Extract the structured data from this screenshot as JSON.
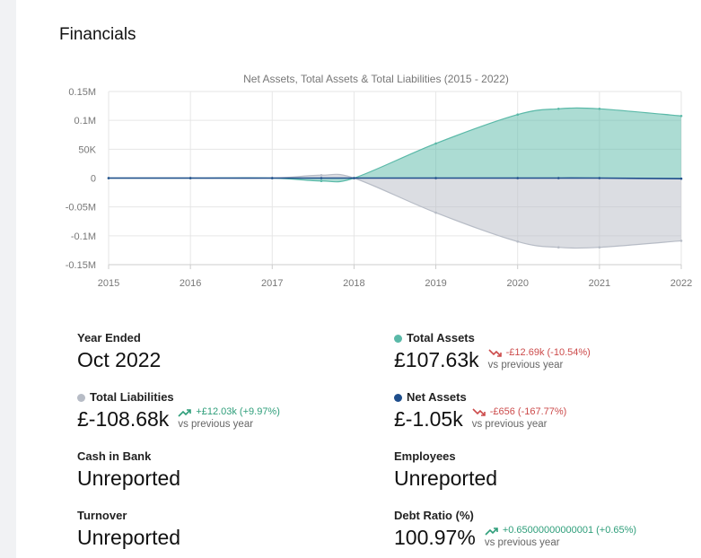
{
  "section": {
    "title": "Financials"
  },
  "colors": {
    "assets": "#5ab9a8",
    "liabilities": "#b7bcc6",
    "net": "#1f4e8c",
    "up": "#2e9e7a",
    "down": "#cc4b4b"
  },
  "chart_data": {
    "type": "area",
    "title": "Net Assets, Total Assets & Total Liabilities (2015 - 2022)",
    "x": [
      2015,
      2016,
      2017,
      2017.6,
      2018,
      2019,
      2020,
      2020.5,
      2021,
      2022
    ],
    "x_ticks": [
      "2015",
      "2016",
      "2017",
      "2018",
      "2019",
      "2020",
      "2021",
      "2022"
    ],
    "y_ticks": [
      "0.15M",
      "0.1M",
      "50K",
      "0",
      "-0.05M",
      "-0.1M",
      "-0.15M"
    ],
    "ylim": [
      -150000,
      150000
    ],
    "grid": true,
    "series": [
      {
        "name": "Total Assets",
        "color": "#5ab9a8",
        "values": [
          0,
          0,
          0,
          -5000,
          0,
          60000,
          110000,
          120000,
          120000,
          107630
        ]
      },
      {
        "name": "Total Liabilities",
        "color": "#b7bcc6",
        "values": [
          0,
          0,
          0,
          5000,
          0,
          -60000,
          -110000,
          -120000,
          -120000,
          -108680
        ]
      },
      {
        "name": "Net Assets",
        "color": "#1f4e8c",
        "values": [
          0,
          0,
          0,
          0,
          0,
          0,
          0,
          0,
          0,
          -1050
        ]
      }
    ]
  },
  "stats": {
    "year_ended": {
      "label": "Year Ended",
      "value": "Oct 2022"
    },
    "total_assets": {
      "label": "Total Assets",
      "value": "£107.63k",
      "delta": "-£12.69k (-10.54%)",
      "sub": "vs previous year"
    },
    "total_liabilities": {
      "label": "Total Liabilities",
      "value": "£-108.68k",
      "delta": "+£12.03k (+9.97%)",
      "sub": "vs previous year"
    },
    "net_assets": {
      "label": "Net Assets",
      "value": "£-1.05k",
      "delta": "-£656 (-167.77%)",
      "sub": "vs previous year"
    },
    "cash_in_bank": {
      "label": "Cash in Bank",
      "value": "Unreported"
    },
    "employees": {
      "label": "Employees",
      "value": "Unreported"
    },
    "turnover": {
      "label": "Turnover",
      "value": "Unreported"
    },
    "debt_ratio": {
      "label": "Debt Ratio (%)",
      "value": "100.97%",
      "delta": "+0.65000000000001 (+0.65%)",
      "sub": "vs previous year"
    }
  }
}
